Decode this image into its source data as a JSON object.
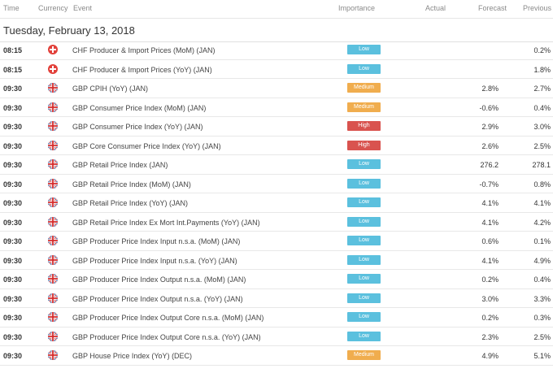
{
  "header": {
    "time": "Time",
    "currency": "Currency",
    "event": "Event",
    "importance": "Importance",
    "actual": "Actual",
    "forecast": "Forecast",
    "previous": "Previous"
  },
  "date": "Tuesday, February 13, 2018",
  "rows": [
    {
      "time": "08:15",
      "currency": "chf",
      "event": "CHF Producer & Import Prices (MoM) (JAN)",
      "importance": "Low",
      "level": "low",
      "actual": "",
      "forecast": "",
      "previous": "0.2%"
    },
    {
      "time": "08:15",
      "currency": "chf",
      "event": "CHF Producer & Import Prices (YoY) (JAN)",
      "importance": "Low",
      "level": "low",
      "actual": "",
      "forecast": "",
      "previous": "1.8%"
    },
    {
      "time": "09:30",
      "currency": "gbp",
      "event": "GBP CPIH (YoY) (JAN)",
      "importance": "Medium",
      "level": "medium",
      "actual": "",
      "forecast": "2.8%",
      "previous": "2.7%"
    },
    {
      "time": "09:30",
      "currency": "gbp",
      "event": "GBP Consumer Price Index (MoM) (JAN)",
      "importance": "Medium",
      "level": "medium",
      "actual": "",
      "forecast": "-0.6%",
      "previous": "0.4%"
    },
    {
      "time": "09:30",
      "currency": "gbp",
      "event": "GBP Consumer Price Index (YoY) (JAN)",
      "importance": "High",
      "level": "high",
      "actual": "",
      "forecast": "2.9%",
      "previous": "3.0%"
    },
    {
      "time": "09:30",
      "currency": "gbp",
      "event": "GBP Core Consumer Price Index (YoY) (JAN)",
      "importance": "High",
      "level": "high",
      "actual": "",
      "forecast": "2.6%",
      "previous": "2.5%"
    },
    {
      "time": "09:30",
      "currency": "gbp",
      "event": "GBP Retail Price Index (JAN)",
      "importance": "Low",
      "level": "low",
      "actual": "",
      "forecast": "276.2",
      "previous": "278.1"
    },
    {
      "time": "09:30",
      "currency": "gbp",
      "event": "GBP Retail Price Index (MoM) (JAN)",
      "importance": "Low",
      "level": "low",
      "actual": "",
      "forecast": "-0.7%",
      "previous": "0.8%"
    },
    {
      "time": "09:30",
      "currency": "gbp",
      "event": "GBP Retail Price Index (YoY) (JAN)",
      "importance": "Low",
      "level": "low",
      "actual": "",
      "forecast": "4.1%",
      "previous": "4.1%"
    },
    {
      "time": "09:30",
      "currency": "gbp",
      "event": "GBP Retail Price Index Ex Mort Int.Payments (YoY) (JAN)",
      "importance": "Low",
      "level": "low",
      "actual": "",
      "forecast": "4.1%",
      "previous": "4.2%"
    },
    {
      "time": "09:30",
      "currency": "gbp",
      "event": "GBP Producer Price Index Input n.s.a. (MoM) (JAN)",
      "importance": "Low",
      "level": "low",
      "actual": "",
      "forecast": "0.6%",
      "previous": "0.1%"
    },
    {
      "time": "09:30",
      "currency": "gbp",
      "event": "GBP Producer Price Index Input n.s.a. (YoY) (JAN)",
      "importance": "Low",
      "level": "low",
      "actual": "",
      "forecast": "4.1%",
      "previous": "4.9%"
    },
    {
      "time": "09:30",
      "currency": "gbp",
      "event": "GBP Producer Price Index Output n.s.a. (MoM) (JAN)",
      "importance": "Low",
      "level": "low",
      "actual": "",
      "forecast": "0.2%",
      "previous": "0.4%"
    },
    {
      "time": "09:30",
      "currency": "gbp",
      "event": "GBP Producer Price Index Output n.s.a. (YoY) (JAN)",
      "importance": "Low",
      "level": "low",
      "actual": "",
      "forecast": "3.0%",
      "previous": "3.3%"
    },
    {
      "time": "09:30",
      "currency": "gbp",
      "event": "GBP Producer Price Index Output Core n.s.a. (MoM) (JAN)",
      "importance": "Low",
      "level": "low",
      "actual": "",
      "forecast": "0.2%",
      "previous": "0.3%"
    },
    {
      "time": "09:30",
      "currency": "gbp",
      "event": "GBP Producer Price Index Output Core n.s.a. (YoY) (JAN)",
      "importance": "Low",
      "level": "low",
      "actual": "",
      "forecast": "2.3%",
      "previous": "2.5%"
    },
    {
      "time": "09:30",
      "currency": "gbp",
      "event": "GBP House Price Index (YoY) (DEC)",
      "importance": "Medium",
      "level": "medium",
      "actual": "",
      "forecast": "4.9%",
      "previous": "5.1%"
    }
  ],
  "colors": {
    "low": "#5bc0de",
    "medium": "#f0ad4e",
    "high": "#d9534f"
  }
}
